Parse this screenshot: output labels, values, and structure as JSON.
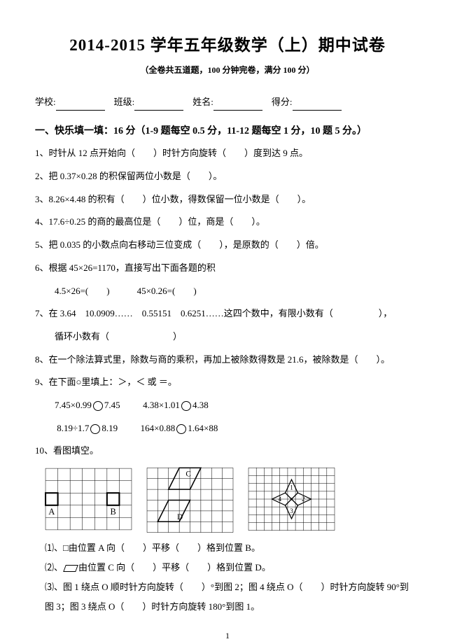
{
  "title": "2014-2015 学年五年级数学（上）期中试卷",
  "subtitle": "（全卷共五道题，100 分钟完卷，满分 100 分）",
  "info_labels": {
    "school": "学校:",
    "class": "班级:",
    "name": "姓名:",
    "score": "得分:"
  },
  "section1": {
    "title": "一、快乐填一填：16 分（1-9 题每空 0.5 分，11-12 题每空 1 分，10 题 5 分。）",
    "q1": "1、时针从 12 点开始向（　　）时针方向旋转（　　）度到达 9 点。",
    "q2": "2、把 0.37×0.28 的积保留两位小数是（　　）。",
    "q3": "3、8.26×4.48 的积有（　　）位小数，得数保留一位小数是（　　）。",
    "q4": "4、17.6÷0.25 的商的最高位是（　　）位，商是（　　）。",
    "q5": "5、把 0.035 的小数点向右移动三位变成（　　），是原数的（　　）倍。",
    "q6": "6、根据 45×26=1170，直接写出下面各题的积",
    "q6_sub": "4.5×26=(　　)　　　45×0.26=(　　)",
    "q7": "7、在 3.64　10.0909……　0.55151　0.6251……这四个数中，有限小数有（　　　　　），",
    "q7_sub": "循环小数有（　　　　　　　）",
    "q8": "8、在一个除法算式里，除数与商的乘积，再加上被除数得数是 21.6，被除数是（　　）。",
    "q9": "9、在下面○里填上：＞，＜ 或 ＝。",
    "q9_line1_a": "7.45×0.99",
    "q9_line1_b": "7.45",
    "q9_line1_c": "4.38×1.01",
    "q9_line1_d": "4.38",
    "q9_line2_a": "8.19÷1.7",
    "q9_line2_b": "8.19",
    "q9_line2_c": "164×0.88",
    "q9_line2_d": "1.64×88",
    "q10": "10、看图填空。",
    "q10_1": "⑴、□由位置 A 向（　　）平移（　　）格到位置 B。",
    "q10_2_pre": "⑵、",
    "q10_2_post": "由位置 C 向（　　）平移（　　）格到位置 D。",
    "q10_3": "⑶、图 1 绕点 O 顺时针方向旋转（　　）°到图 2；图 4 绕点 O（　　）时针方向旋转 90°到",
    "q10_3_sub": "图 3；图 3 绕点 O（　　）时针方向旋转 180°到图 1。"
  },
  "figures": {
    "fig1": {
      "cols": 7,
      "rows": 5,
      "cell": 17,
      "labelA": "A",
      "labelB": "B"
    },
    "fig2": {
      "cols": 8,
      "rows": 6,
      "cell": 15,
      "labelC": "C",
      "labelD": "D"
    },
    "fig3": {
      "cols": 11,
      "rows": 8,
      "cell": 11
    }
  },
  "page_num": "1"
}
